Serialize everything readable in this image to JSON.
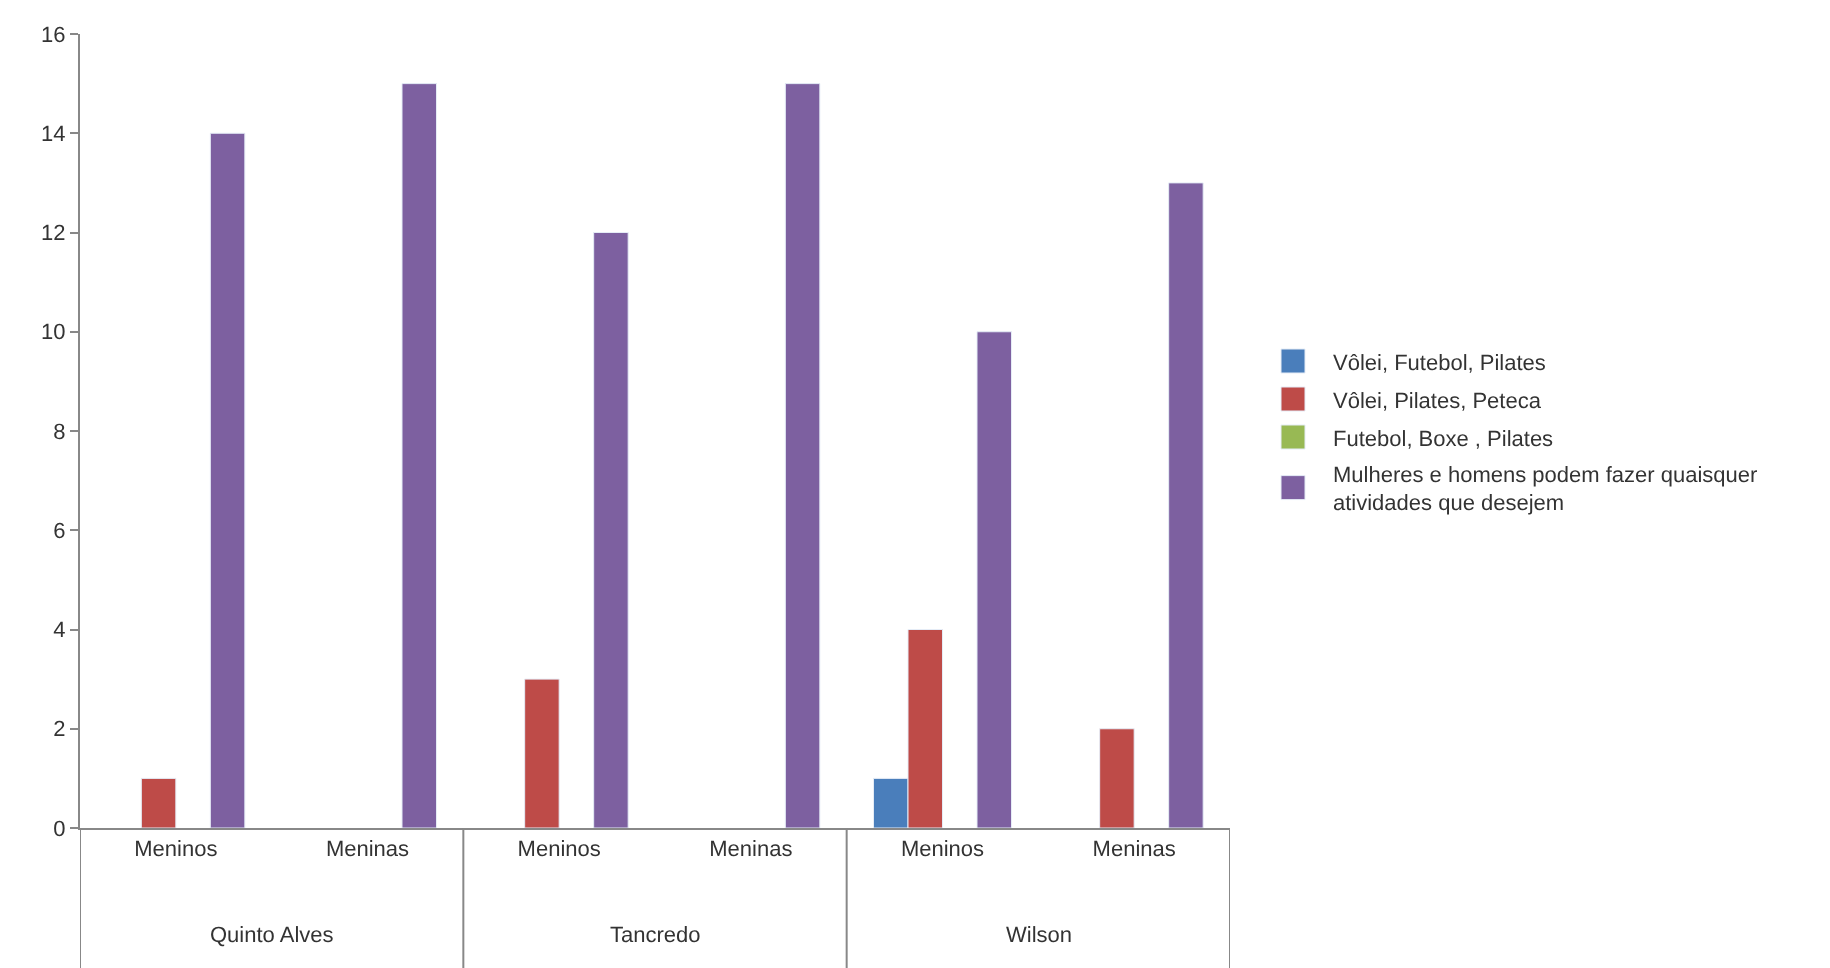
{
  "chart_data": {
    "type": "bar",
    "categories": [
      "Meninos",
      "Meninas",
      "Meninos",
      "Meninas",
      "Meninos",
      "Meninas"
    ],
    "series": [
      {
        "name": "Vôlei, Futebol, Pilates",
        "color": "#4a7ebb",
        "values": [
          null,
          null,
          null,
          null,
          1,
          null
        ]
      },
      {
        "name": "Vôlei, Pilates, Peteca",
        "color": "#be4b48",
        "values": [
          1,
          null,
          3,
          null,
          4,
          2
        ]
      },
      {
        "name": "Futebol, Boxe , Pilates",
        "color": "#98b954",
        "values": [
          null,
          null,
          null,
          null,
          null,
          null
        ]
      },
      {
        "name": "Mulheres e homens podem fazer quaisquer atividades que desejem",
        "color": "#7d60a0",
        "values": [
          14,
          15,
          12,
          15,
          10,
          13
        ]
      }
    ],
    "annotations": [
      "Quinto Alves",
      "Tancredo",
      "Wilson"
    ],
    "ylim": [
      0,
      16
    ],
    "yticks": [
      0,
      2,
      4,
      6,
      8,
      10,
      12,
      14,
      16
    ],
    "grid": false,
    "legend": "right"
  }
}
